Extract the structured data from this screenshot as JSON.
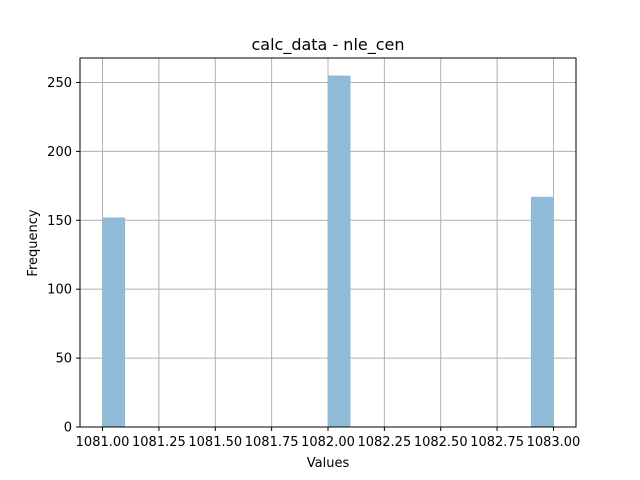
{
  "chart_data": {
    "type": "bar",
    "title": "calc_data - nle_cen",
    "xlabel": "Values",
    "ylabel": "Frequency",
    "xlim": [
      1080.9,
      1083.1
    ],
    "ylim": [
      0,
      267.75
    ],
    "grid": true,
    "bar_color": "#8fbbd9",
    "bins": [
      {
        "x0": 1081.0,
        "x1": 1081.1,
        "value": 152
      },
      {
        "x0": 1081.1,
        "x1": 1081.2,
        "value": 0
      },
      {
        "x0": 1081.2,
        "x1": 1081.3,
        "value": 0
      },
      {
        "x0": 1081.3,
        "x1": 1081.4,
        "value": 0
      },
      {
        "x0": 1081.4,
        "x1": 1081.5,
        "value": 0
      },
      {
        "x0": 1081.5,
        "x1": 1081.6,
        "value": 0
      },
      {
        "x0": 1081.6,
        "x1": 1081.7,
        "value": 0
      },
      {
        "x0": 1081.7,
        "x1": 1081.8,
        "value": 0
      },
      {
        "x0": 1081.8,
        "x1": 1081.9,
        "value": 0
      },
      {
        "x0": 1081.9,
        "x1": 1082.0,
        "value": 0
      },
      {
        "x0": 1082.0,
        "x1": 1082.1,
        "value": 255
      },
      {
        "x0": 1082.1,
        "x1": 1082.2,
        "value": 0
      },
      {
        "x0": 1082.2,
        "x1": 1082.3,
        "value": 0
      },
      {
        "x0": 1082.3,
        "x1": 1082.4,
        "value": 0
      },
      {
        "x0": 1082.4,
        "x1": 1082.5,
        "value": 0
      },
      {
        "x0": 1082.5,
        "x1": 1082.6,
        "value": 0
      },
      {
        "x0": 1082.6,
        "x1": 1082.7,
        "value": 0
      },
      {
        "x0": 1082.7,
        "x1": 1082.8,
        "value": 0
      },
      {
        "x0": 1082.8,
        "x1": 1082.9,
        "value": 0
      },
      {
        "x0": 1082.9,
        "x1": 1083.0,
        "value": 167
      }
    ],
    "x_ticks": [
      1081.0,
      1081.25,
      1081.5,
      1081.75,
      1082.0,
      1082.25,
      1082.5,
      1082.75,
      1083.0
    ],
    "x_tick_labels": [
      "1081.00",
      "1081.25",
      "1081.50",
      "1081.75",
      "1082.00",
      "1082.25",
      "1082.50",
      "1082.75",
      "1083.00"
    ],
    "y_ticks": [
      0,
      50,
      100,
      150,
      200,
      250
    ],
    "y_tick_labels": [
      "0",
      "50",
      "100",
      "150",
      "200",
      "250"
    ]
  }
}
